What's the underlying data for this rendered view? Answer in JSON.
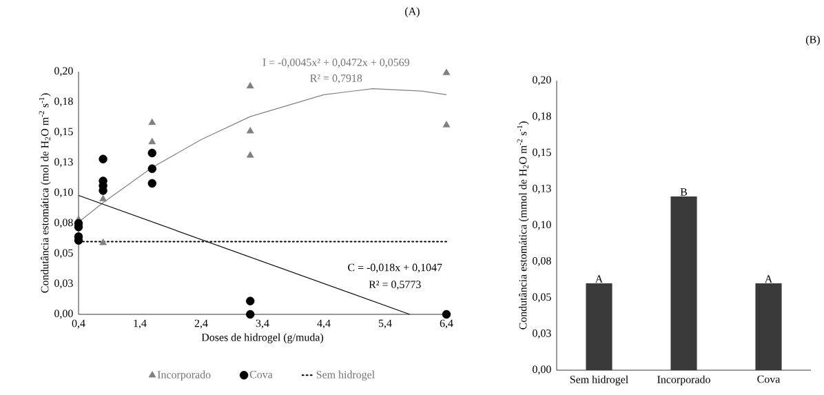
{
  "chart_data": [
    {
      "type": "scatter",
      "title": "(A)",
      "xlabel": "Doses de hidrogel (g/muda)",
      "ylabel": "Condutância estomática (mol de H$_{2}$O m$^{-2}$ s$^{-1}$)",
      "xlim": [
        0.4,
        6.4
      ],
      "ylim": [
        0,
        0.2
      ],
      "xticks": [
        {
          "value": 0.4,
          "label": "0,4"
        },
        {
          "value": 1.4,
          "label": "1,4"
        },
        {
          "value": 2.4,
          "label": "2,4"
        },
        {
          "value": 3.4,
          "label": "3,4"
        },
        {
          "value": 4.4,
          "label": "4,4"
        },
        {
          "value": 5.4,
          "label": "5,4"
        },
        {
          "value": 6.4,
          "label": "6,4"
        }
      ],
      "yticks": [
        {
          "value": 0,
          "label": "0,00"
        },
        {
          "value": 0.025,
          "label": "0,03"
        },
        {
          "value": 0.05,
          "label": "0,05"
        },
        {
          "value": 0.075,
          "label": "0,08"
        },
        {
          "value": 0.1,
          "label": "0,10"
        },
        {
          "value": 0.125,
          "label": "0,13"
        },
        {
          "value": 0.15,
          "label": "0,15"
        },
        {
          "value": 0.175,
          "label": "0,18"
        },
        {
          "value": 0.2,
          "label": "0,20"
        }
      ],
      "legend": "bottom",
      "series": [
        {
          "name": "Incorporado",
          "type": "scatter",
          "marker": "triangle",
          "color": "#808080",
          "x": [
            0.4,
            0.8,
            0.8,
            1.6,
            1.6,
            3.2,
            3.2,
            3.2,
            6.4,
            6.4
          ],
          "values": [
            0.078,
            0.095,
            0.059,
            0.158,
            0.142,
            0.188,
            0.151,
            0.131,
            0.199,
            0.156
          ]
        },
        {
          "name": "Cova",
          "type": "scatter",
          "marker": "circle",
          "color": "#000000",
          "x": [
            0.4,
            0.4,
            0.4,
            0.4,
            0.8,
            0.8,
            0.8,
            0.8,
            1.6,
            1.6,
            1.6,
            3.2,
            3.2,
            6.4
          ],
          "values": [
            0.075,
            0.072,
            0.064,
            0.061,
            0.128,
            0.11,
            0.106,
            0.102,
            0.133,
            0.12,
            0.108,
            0.011,
            0,
            0
          ]
        },
        {
          "name": "Sem hidrogel",
          "type": "line",
          "line_style": "dotted",
          "color": "#000000",
          "x": [
            0.4,
            6.4
          ],
          "values": [
            0.06,
            0.06
          ]
        },
        {
          "type": "line",
          "line_style": "solid",
          "color": "#808080",
          "x": [
            0.4,
            0.8,
            1.6,
            2.4,
            3.2,
            4.4,
            5.2,
            6.0,
            6.4
          ],
          "values": [
            0.076,
            0.092,
            0.121,
            0.144,
            0.163,
            0.181,
            0.186,
            0.184,
            0.181
          ]
        },
        {
          "type": "line",
          "line_style": "solid",
          "color": "#000000",
          "x": [
            0.4,
            5.8
          ],
          "values": [
            0.098,
            0
          ]
        }
      ],
      "annotations": [
        "I = -0,0045x² + 0,0472x + 0,0569",
        "R² = 0,7918",
        "C = -0,018x + 0,1047",
        "R² = 0,5773"
      ]
    },
    {
      "type": "bar",
      "title": "(B)",
      "ylabel": "Condutância estomática (mmol de H$_{2}$O m$^{-2}$ s$^{-1}$)",
      "categories": [
        "Sem hidrogel",
        "Incorporado",
        "Cova"
      ],
      "values": [
        0.06,
        0.12,
        0.06
      ],
      "color": "#3a3a3a",
      "ylim": [
        0,
        0.2
      ],
      "yticks": [
        {
          "value": 0,
          "label": "0,00"
        },
        {
          "value": 0.025,
          "label": "0,03"
        },
        {
          "value": 0.05,
          "label": "0,05"
        },
        {
          "value": 0.075,
          "label": "0,08"
        },
        {
          "value": 0.1,
          "label": "0,10"
        },
        {
          "value": 0.125,
          "label": "0,13"
        },
        {
          "value": 0.15,
          "label": "0,15"
        },
        {
          "value": 0.175,
          "label": "0,18"
        },
        {
          "value": 0.2,
          "label": "0,20"
        }
      ],
      "annotations": [
        {
          "text": "A",
          "x": "Sem hidrogel",
          "y": 0.06
        },
        {
          "text": "B",
          "x": "Incorporado",
          "y": 0.12
        },
        {
          "text": "A",
          "x": "Cova",
          "y": 0.06
        }
      ]
    }
  ]
}
